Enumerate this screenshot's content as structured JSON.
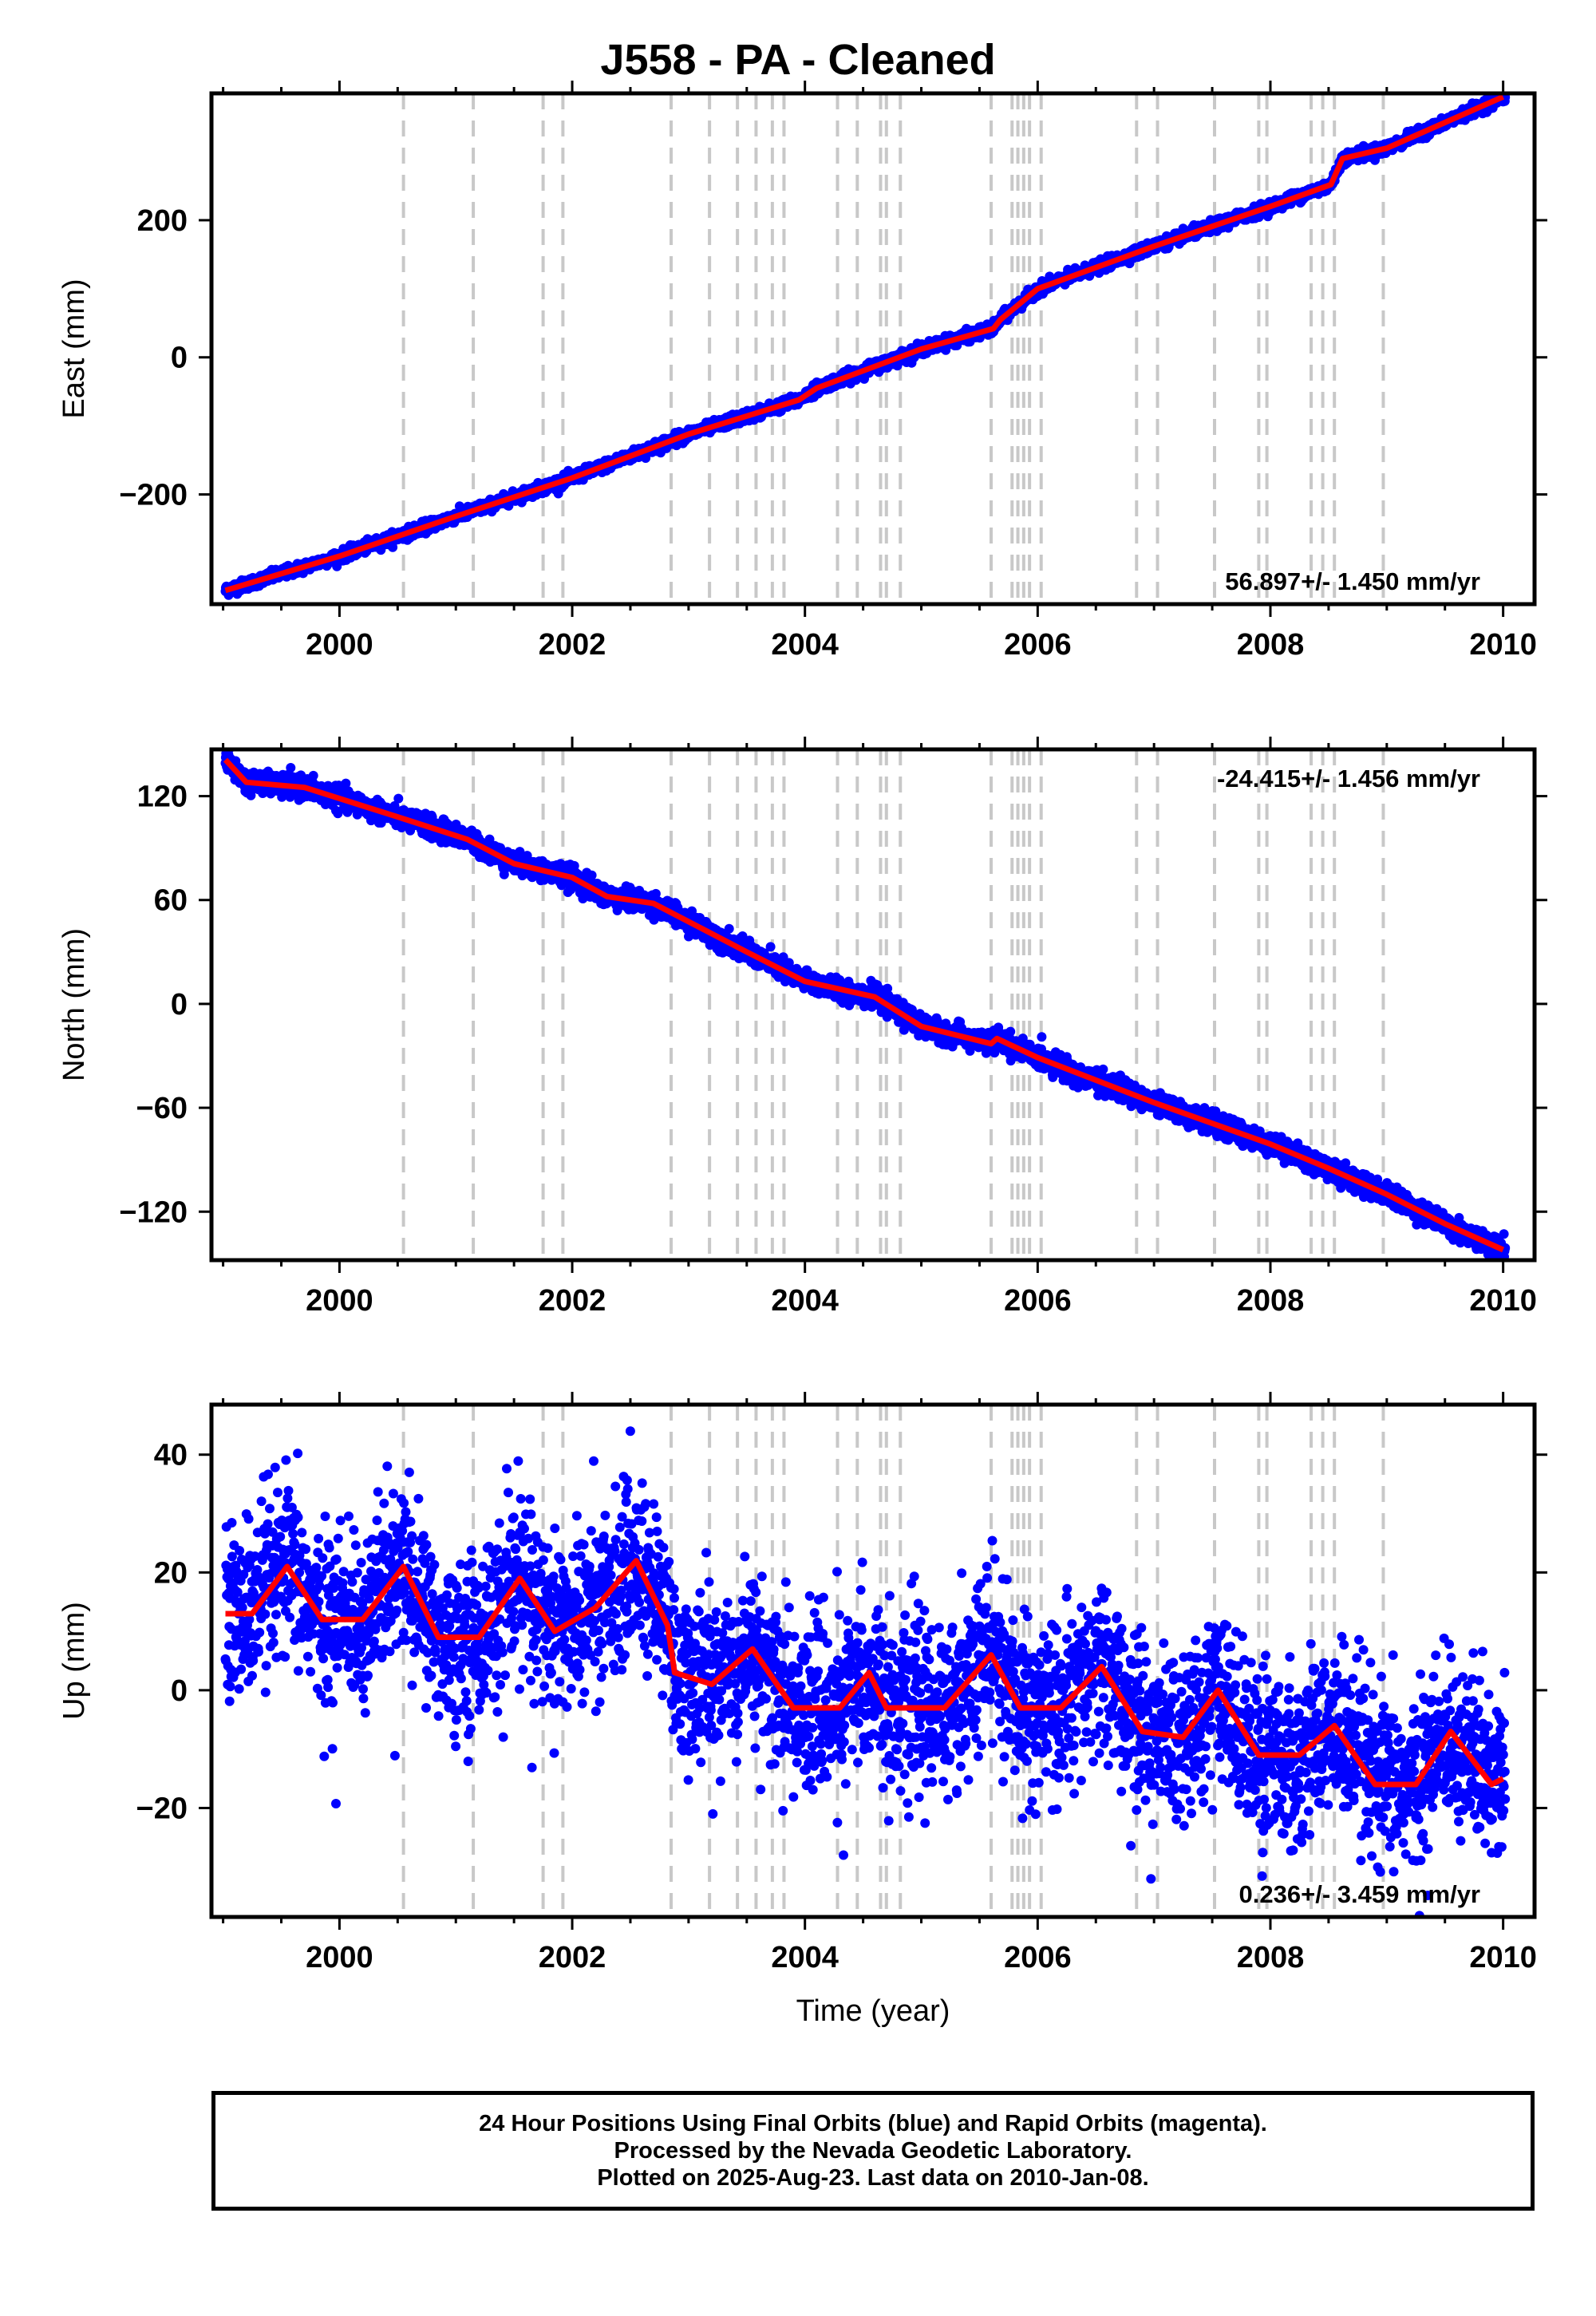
{
  "title": "J558  - PA - Cleaned",
  "caption": {
    "line1": "24 Hour Positions Using Final Orbits (blue) and Rapid Orbits (magenta).",
    "line2": "Processed by the Nevada Geodetic Laboratory.",
    "line3": "Plotted on 2025-Aug-23. Last data on 2010-Jan-08."
  },
  "colors": {
    "observations": "#0000ff",
    "model": "#ff0000",
    "events": "#c8c8c8",
    "frame": "#000000"
  },
  "chart_data": [
    {
      "type": "scatter",
      "ylabel": "East (mm)",
      "xlabel": "",
      "xlim": [
        1998.9,
        2010.27
      ],
      "ylim": [
        -360,
        385
      ],
      "yticks": [
        -200,
        0,
        200
      ],
      "xticks": [
        2000,
        2002,
        2004,
        2006,
        2008,
        2010
      ],
      "rate_label": "56.897+/- 1.450 mm/yr",
      "rate_position": "bottom-right",
      "model_knots": [
        [
          1999.02,
          -340
        ],
        [
          2000.0,
          -290
        ],
        [
          2001.0,
          -232
        ],
        [
          2002.0,
          -176
        ],
        [
          2003.0,
          -112
        ],
        [
          2003.95,
          -62
        ],
        [
          2004.1,
          -45
        ],
        [
          2005.0,
          12
        ],
        [
          2005.62,
          42
        ],
        [
          2005.68,
          55
        ],
        [
          2006.0,
          100
        ],
        [
          2007.0,
          162
        ],
        [
          2008.0,
          220
        ],
        [
          2008.52,
          252
        ],
        [
          2008.62,
          290
        ],
        [
          2009.0,
          305
        ],
        [
          2010.0,
          380
        ]
      ],
      "noise_mm": 4
    },
    {
      "type": "scatter",
      "ylabel": "North (mm)",
      "xlabel": "",
      "xlim": [
        1998.9,
        2010.27
      ],
      "ylim": [
        -148,
        147
      ],
      "yticks": [
        -120,
        -60,
        0,
        60,
        120
      ],
      "xticks": [
        2000,
        2002,
        2004,
        2006,
        2008,
        2010
      ],
      "rate_label": "-24.415+/- 1.456 mm/yr",
      "rate_position": "top-right",
      "model_knots": [
        [
          1999.02,
          141
        ],
        [
          1999.2,
          128
        ],
        [
          1999.7,
          125
        ],
        [
          2000.5,
          108
        ],
        [
          2001.1,
          95
        ],
        [
          2001.5,
          81
        ],
        [
          2002.0,
          73
        ],
        [
          2002.3,
          62
        ],
        [
          2002.7,
          58
        ],
        [
          2003.5,
          30
        ],
        [
          2004.0,
          13
        ],
        [
          2004.6,
          4
        ],
        [
          2005.0,
          -13
        ],
        [
          2005.6,
          -23
        ],
        [
          2005.65,
          -20
        ],
        [
          2006.0,
          -31
        ],
        [
          2007.0,
          -57
        ],
        [
          2008.0,
          -81
        ],
        [
          2008.5,
          -95
        ],
        [
          2009.0,
          -110
        ],
        [
          2009.5,
          -127
        ],
        [
          2010.0,
          -142
        ]
      ],
      "noise_mm": 3
    },
    {
      "type": "scatter",
      "ylabel": "Up (mm)",
      "xlabel": "Time (year)",
      "xlim": [
        1998.9,
        2010.27
      ],
      "ylim": [
        -38.5,
        48.5
      ],
      "yticks": [
        -20,
        0,
        20,
        40
      ],
      "xticks": [
        2000,
        2002,
        2004,
        2006,
        2008,
        2010
      ],
      "rate_label": "0.236+/- 3.459 mm/yr",
      "rate_position": "bottom-right",
      "model_knots": [
        [
          1999.02,
          13
        ],
        [
          1999.25,
          13
        ],
        [
          1999.55,
          21
        ],
        [
          1999.85,
          12
        ],
        [
          2000.2,
          12
        ],
        [
          2000.55,
          21
        ],
        [
          2000.85,
          9
        ],
        [
          2001.2,
          9
        ],
        [
          2001.55,
          19
        ],
        [
          2001.85,
          10
        ],
        [
          2002.2,
          14
        ],
        [
          2002.55,
          22
        ],
        [
          2002.82,
          11
        ],
        [
          2002.88,
          3
        ],
        [
          2003.2,
          1
        ],
        [
          2003.55,
          7
        ],
        [
          2003.9,
          -3
        ],
        [
          2004.3,
          -3
        ],
        [
          2004.55,
          3
        ],
        [
          2004.7,
          -3
        ],
        [
          2005.2,
          -3
        ],
        [
          2005.6,
          6
        ],
        [
          2005.85,
          -3
        ],
        [
          2006.2,
          -3
        ],
        [
          2006.55,
          4
        ],
        [
          2006.9,
          -7
        ],
        [
          2007.25,
          -8
        ],
        [
          2007.55,
          0
        ],
        [
          2007.9,
          -11
        ],
        [
          2008.25,
          -11
        ],
        [
          2008.55,
          -6
        ],
        [
          2008.9,
          -16
        ],
        [
          2009.25,
          -16
        ],
        [
          2009.55,
          -7
        ],
        [
          2009.9,
          -16
        ],
        [
          2010.0,
          -15
        ]
      ],
      "noise_mm": 7
    }
  ],
  "event_lines": [
    2000.55,
    2001.15,
    2001.75,
    2001.92,
    2002.85,
    2003.18,
    2003.42,
    2003.58,
    2003.72,
    2003.82,
    2004.28,
    2004.45,
    2004.65,
    2004.7,
    2004.82,
    2005.6,
    2005.78,
    2005.83,
    2005.88,
    2005.93,
    2006.03,
    2006.85,
    2007.03,
    2007.52,
    2007.9,
    2007.97,
    2008.35,
    2008.45,
    2008.55,
    2008.97
  ]
}
